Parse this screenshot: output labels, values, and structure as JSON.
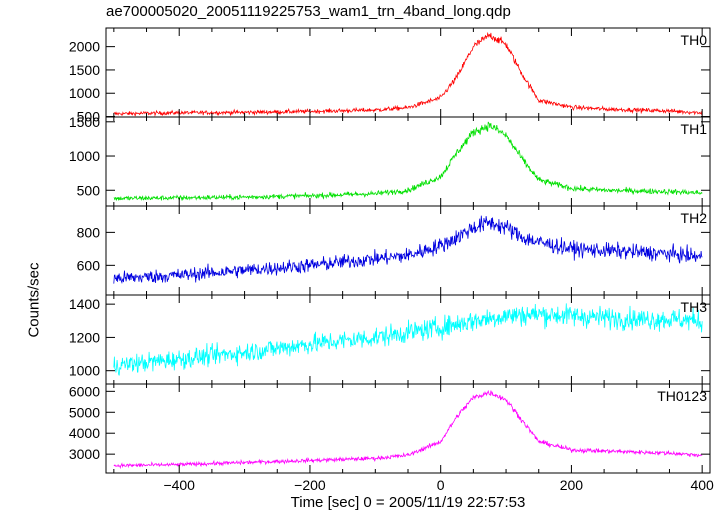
{
  "chart_data": {
    "type": "line",
    "title": "ae700005020_20051119225753_wam1_trn_4band_long.qdp",
    "xlabel": "Time [sec] 0 = 2005/11/19 22:57:53",
    "ylabel": "Counts/sec",
    "xlim": [
      -512,
      412
    ],
    "x_ticks": [
      "−400",
      "−200",
      "0",
      "200",
      "400"
    ],
    "x_tick_values": [
      -400,
      -200,
      0,
      200,
      400
    ],
    "grid": false,
    "panels": [
      {
        "name": "TH0",
        "color": "#ff0000",
        "ylim": [
          490,
          2400
        ],
        "y_ticks": [
          500,
          1000,
          1500,
          2000
        ],
        "x": [
          -500,
          -400,
          -300,
          -200,
          -100,
          -50,
          0,
          25,
          50,
          75,
          100,
          125,
          150,
          200,
          250,
          300,
          350,
          400
        ],
        "y": [
          560,
          580,
          590,
          610,
          640,
          690,
          900,
          1350,
          2000,
          2250,
          2050,
          1400,
          850,
          700,
          660,
          640,
          620,
          580
        ]
      },
      {
        "name": "TH1",
        "color": "#00e000",
        "ylim": [
          270,
          1570
        ],
        "y_ticks": [
          500,
          1000,
          1500
        ],
        "x": [
          -500,
          -400,
          -300,
          -200,
          -100,
          -50,
          0,
          25,
          50,
          75,
          100,
          125,
          150,
          200,
          250,
          300,
          350,
          400
        ],
        "y": [
          380,
          390,
          400,
          420,
          450,
          500,
          700,
          1050,
          1350,
          1450,
          1300,
          950,
          650,
          530,
          500,
          490,
          480,
          460
        ]
      },
      {
        "name": "TH2",
        "color": "#0000e0",
        "ylim": [
          420,
          960
        ],
        "y_ticks": [
          600,
          800
        ],
        "x": [
          -500,
          -400,
          -300,
          -200,
          -100,
          -50,
          0,
          25,
          50,
          75,
          100,
          125,
          150,
          200,
          250,
          300,
          350,
          400
        ],
        "y": [
          520,
          540,
          570,
          600,
          640,
          660,
          720,
          770,
          830,
          860,
          830,
          770,
          740,
          700,
          690,
          680,
          670,
          650
        ]
      },
      {
        "name": "TH3",
        "color": "#00ffff",
        "ylim": [
          920,
          1455
        ],
        "y_ticks": [
          1000,
          1200,
          1400
        ],
        "x": [
          -500,
          -400,
          -300,
          -200,
          -100,
          0,
          50,
          100,
          150,
          200,
          250,
          300,
          350,
          400
        ],
        "y": [
          1030,
          1070,
          1110,
          1160,
          1200,
          1260,
          1300,
          1330,
          1340,
          1330,
          1320,
          1310,
          1310,
          1300
        ]
      },
      {
        "name": "TH0123",
        "color": "#ff00ff",
        "ylim": [
          2100,
          6350
        ],
        "y_ticks": [
          3000,
          4000,
          5000,
          6000
        ],
        "x": [
          -500,
          -400,
          -300,
          -200,
          -100,
          -50,
          0,
          25,
          50,
          75,
          100,
          125,
          150,
          200,
          250,
          300,
          350,
          400
        ],
        "y": [
          2450,
          2500,
          2600,
          2700,
          2800,
          2950,
          3600,
          4800,
          5700,
          5950,
          5600,
          4600,
          3600,
          3200,
          3150,
          3100,
          3050,
          2950
        ]
      }
    ]
  }
}
